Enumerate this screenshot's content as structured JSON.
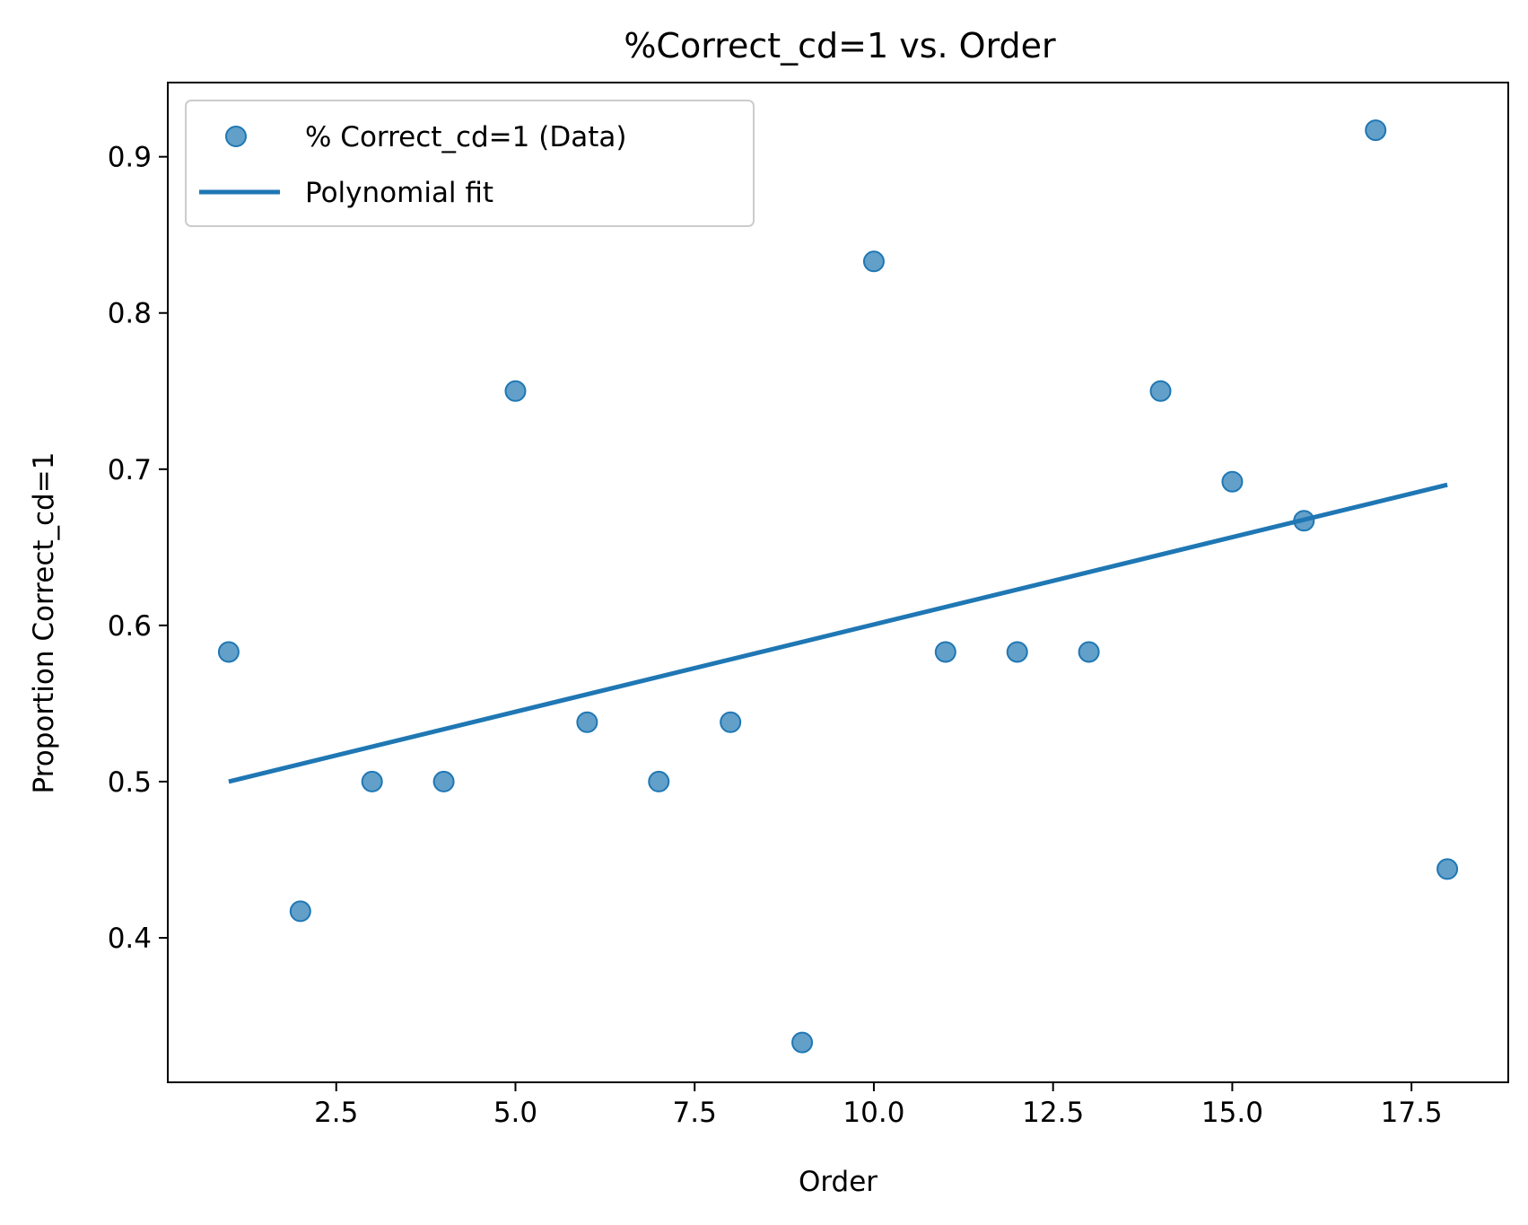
{
  "chart_data": {
    "type": "scatter",
    "title": "%Correct_cd=1 vs. Order",
    "xlabel": "Order",
    "ylabel": "Proportion Correct_cd=1",
    "xlim": [
      0.15,
      18.85
    ],
    "ylim": [
      0.3075,
      0.9475
    ],
    "xticks": [
      2.5,
      5.0,
      7.5,
      10.0,
      12.5,
      15.0,
      17.5
    ],
    "xtick_labels": [
      "2.5",
      "5.0",
      "7.5",
      "10.0",
      "12.5",
      "15.0",
      "17.5"
    ],
    "yticks": [
      0.4,
      0.5,
      0.6,
      0.7,
      0.8,
      0.9
    ],
    "ytick_labels": [
      "0.4",
      "0.5",
      "0.6",
      "0.7",
      "0.8",
      "0.9"
    ],
    "grid": false,
    "legend_position": "top-left",
    "series": [
      {
        "name": "% Correct_cd=1 (Data)",
        "kind": "scatter",
        "color": "#1f77b4",
        "x": [
          1,
          2,
          3,
          4,
          5,
          6,
          7,
          8,
          9,
          10,
          11,
          12,
          13,
          14,
          15,
          16,
          17,
          18
        ],
        "y": [
          0.583,
          0.417,
          0.5,
          0.5,
          0.75,
          0.538,
          0.5,
          0.538,
          0.333,
          0.833,
          0.583,
          0.583,
          0.583,
          0.75,
          0.692,
          0.667,
          0.917,
          0.444
        ]
      },
      {
        "name": "Polynomial fit",
        "kind": "line",
        "color": "#1f77b4",
        "x": [
          1,
          18
        ],
        "y": [
          0.5,
          0.69
        ]
      }
    ]
  }
}
